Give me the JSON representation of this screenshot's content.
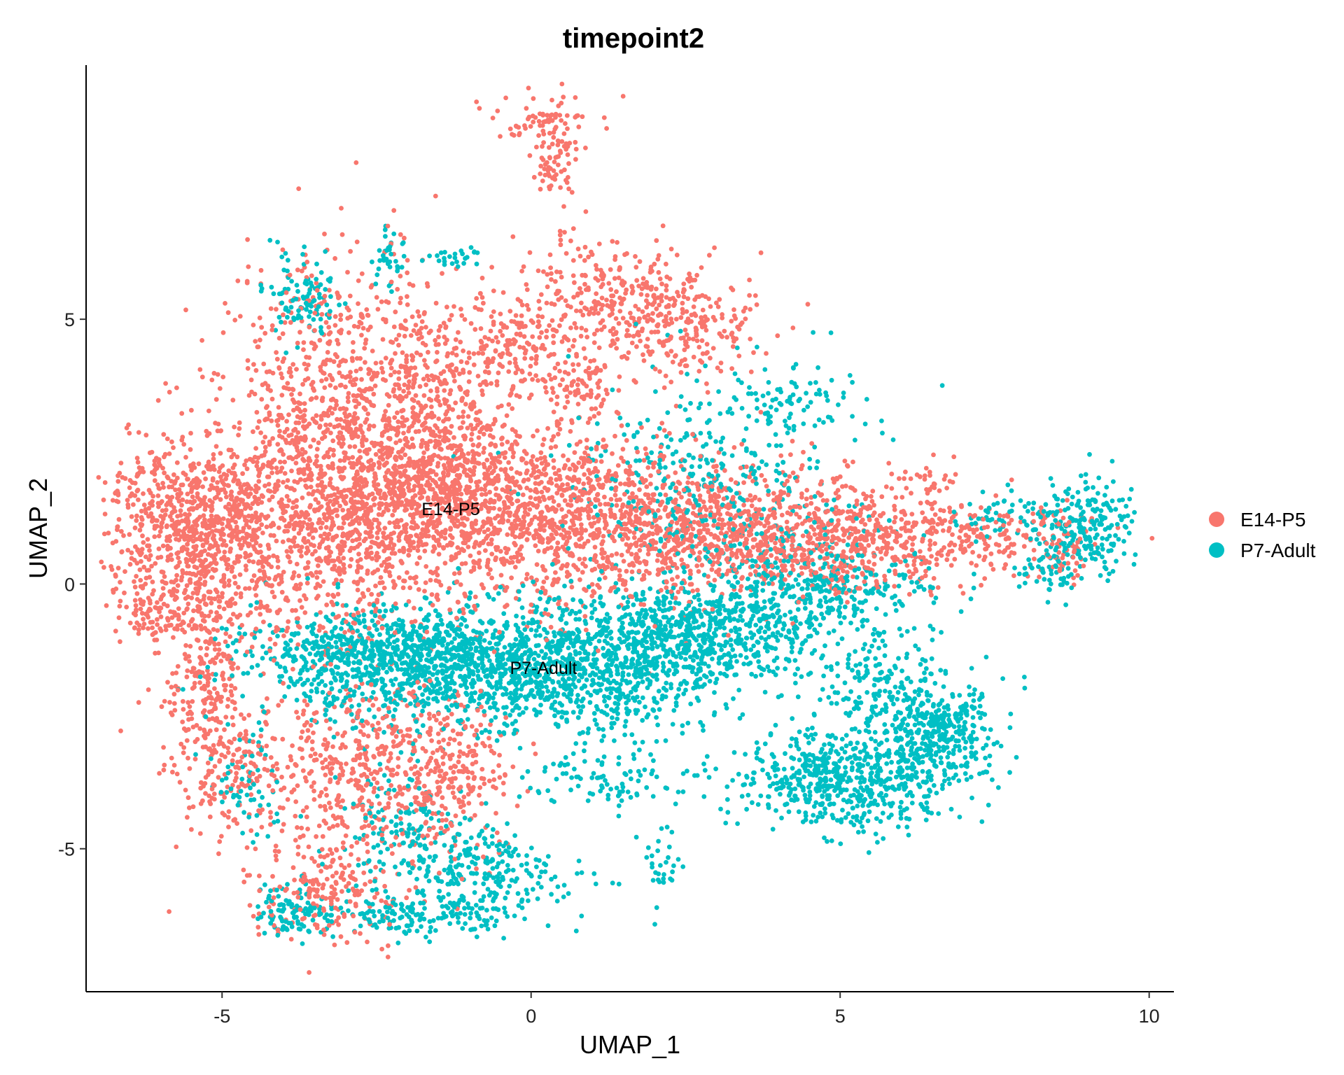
{
  "chart_data": {
    "type": "scatter",
    "title": "timepoint2",
    "xlabel": "UMAP_1",
    "ylabel": "UMAP_2",
    "xlim": [
      -7.2,
      10.4
    ],
    "ylim": [
      -7.7,
      9.8
    ],
    "xticks": [
      -5,
      0,
      5,
      10
    ],
    "yticks": [
      -5,
      0,
      5
    ],
    "xtick_labels": [
      "-5",
      "0",
      "5",
      "10"
    ],
    "ytick_labels": [
      "-5",
      "0",
      "5"
    ],
    "grid": false,
    "legend_position": "right",
    "series": [
      {
        "name": "E14-P5",
        "color": "#F8766D",
        "label_position": [
          -1.3,
          1.3
        ],
        "regions": [
          {
            "cx": -5.4,
            "cy": 1.0,
            "sx": 0.8,
            "sy": 0.9,
            "n": 900
          },
          {
            "cx": -3.3,
            "cy": 1.5,
            "sx": 1.0,
            "sy": 1.3,
            "n": 1000
          },
          {
            "cx": -1.5,
            "cy": 1.6,
            "sx": 1.0,
            "sy": 0.8,
            "n": 900
          },
          {
            "cx": 0.8,
            "cy": 1.2,
            "sx": 1.2,
            "sy": 0.8,
            "n": 900
          },
          {
            "cx": 3.2,
            "cy": 1.0,
            "sx": 1.0,
            "sy": 0.6,
            "n": 600
          },
          {
            "cx": 5.4,
            "cy": 0.9,
            "sx": 0.9,
            "sy": 0.5,
            "n": 450
          },
          {
            "cx": 7.5,
            "cy": 0.9,
            "sx": 1.0,
            "sy": 0.35,
            "n": 200
          },
          {
            "cx": -3.0,
            "cy": 4.0,
            "sx": 0.9,
            "sy": 1.2,
            "n": 450
          },
          {
            "cx": -1.5,
            "cy": 3.6,
            "sx": 0.8,
            "sy": 0.9,
            "n": 300
          },
          {
            "cx": 1.4,
            "cy": 5.4,
            "sx": 0.9,
            "sy": 0.5,
            "n": 250
          },
          {
            "cx": 2.4,
            "cy": 4.8,
            "sx": 0.6,
            "sy": 0.5,
            "n": 220
          },
          {
            "cx": -0.3,
            "cy": 4.5,
            "sx": 0.6,
            "sy": 0.5,
            "n": 180
          },
          {
            "cx": 0.8,
            "cy": 3.6,
            "sx": 0.3,
            "sy": 0.3,
            "n": 80
          },
          {
            "cx": 0.2,
            "cy": 8.7,
            "sx": 0.4,
            "sy": 0.3,
            "n": 70
          },
          {
            "cx": 0.35,
            "cy": 7.9,
            "sx": 0.15,
            "sy": 0.4,
            "n": 60
          },
          {
            "cx": 0.5,
            "cy": 6.8,
            "sx": 0.1,
            "sy": 0.5,
            "n": 15
          },
          {
            "cx": -5.3,
            "cy": -1.8,
            "sx": 0.35,
            "sy": 1.0,
            "n": 250
          },
          {
            "cx": -4.8,
            "cy": -3.6,
            "sx": 0.4,
            "sy": 0.6,
            "n": 120
          },
          {
            "cx": -2.8,
            "cy": -3.4,
            "sx": 0.8,
            "sy": 0.8,
            "n": 450
          },
          {
            "cx": -1.2,
            "cy": -3.6,
            "sx": 0.5,
            "sy": 0.7,
            "n": 200
          },
          {
            "cx": -3.3,
            "cy": -5.8,
            "sx": 0.7,
            "sy": 0.5,
            "n": 200
          },
          {
            "cx": -6.0,
            "cy": -0.6,
            "sx": 0.3,
            "sy": 0.3,
            "n": 80
          },
          {
            "cx": 6.5,
            "cy": 2.0,
            "sx": 0.3,
            "sy": 0.15,
            "n": 25
          },
          {
            "cx": 8.6,
            "cy": 0.6,
            "sx": 0.3,
            "sy": 0.3,
            "n": 30
          }
        ]
      },
      {
        "name": "P7-Adult",
        "color": "#00BFC4",
        "label_position": [
          0.2,
          -1.7
        ],
        "regions": [
          {
            "cx": -2.3,
            "cy": -1.4,
            "sx": 1.2,
            "sy": 0.5,
            "n": 900
          },
          {
            "cx": 0.4,
            "cy": -1.6,
            "sx": 1.4,
            "sy": 0.6,
            "n": 1100
          },
          {
            "cx": 2.8,
            "cy": -0.9,
            "sx": 1.1,
            "sy": 0.5,
            "n": 650
          },
          {
            "cx": 4.8,
            "cy": -0.1,
            "sx": 0.9,
            "sy": 0.5,
            "n": 300
          },
          {
            "cx": 3.0,
            "cy": 2.0,
            "sx": 1.2,
            "sy": 1.0,
            "n": 400
          },
          {
            "cx": 4.3,
            "cy": 3.5,
            "sx": 0.5,
            "sy": 0.3,
            "n": 60
          },
          {
            "cx": 5.0,
            "cy": -3.7,
            "sx": 0.9,
            "sy": 0.45,
            "n": 600
          },
          {
            "cx": 6.6,
            "cy": -2.8,
            "sx": 0.5,
            "sy": 0.5,
            "n": 350
          },
          {
            "cx": 5.6,
            "cy": -2.0,
            "sx": 0.5,
            "sy": 0.5,
            "n": 150
          },
          {
            "cx": 9.0,
            "cy": 1.1,
            "sx": 0.4,
            "sy": 0.4,
            "n": 220
          },
          {
            "cx": 7.8,
            "cy": 1.3,
            "sx": 0.6,
            "sy": 0.2,
            "n": 60
          },
          {
            "cx": 8.4,
            "cy": 0.2,
            "sx": 0.3,
            "sy": 0.25,
            "n": 50
          },
          {
            "cx": -3.7,
            "cy": 5.5,
            "sx": 0.3,
            "sy": 0.4,
            "n": 100
          },
          {
            "cx": -2.3,
            "cy": 6.2,
            "sx": 0.15,
            "sy": 0.3,
            "n": 40
          },
          {
            "cx": -1.3,
            "cy": 6.2,
            "sx": 0.2,
            "sy": 0.1,
            "n": 25
          },
          {
            "cx": -0.8,
            "cy": -5.4,
            "sx": 0.8,
            "sy": 0.4,
            "n": 250
          },
          {
            "cx": -1.8,
            "cy": -6.3,
            "sx": 0.9,
            "sy": 0.2,
            "n": 150
          },
          {
            "cx": -3.8,
            "cy": -6.2,
            "sx": 0.35,
            "sy": 0.25,
            "n": 100
          },
          {
            "cx": 1.2,
            "cy": -3.6,
            "sx": 0.7,
            "sy": 0.3,
            "n": 90
          },
          {
            "cx": 2.1,
            "cy": -5.4,
            "sx": 0.15,
            "sy": 0.4,
            "n": 30
          },
          {
            "cx": -4.6,
            "cy": -3.8,
            "sx": 0.3,
            "sy": 0.6,
            "n": 60
          },
          {
            "cx": -2.0,
            "cy": -4.6,
            "sx": 0.5,
            "sy": 0.5,
            "n": 120
          }
        ]
      }
    ]
  }
}
